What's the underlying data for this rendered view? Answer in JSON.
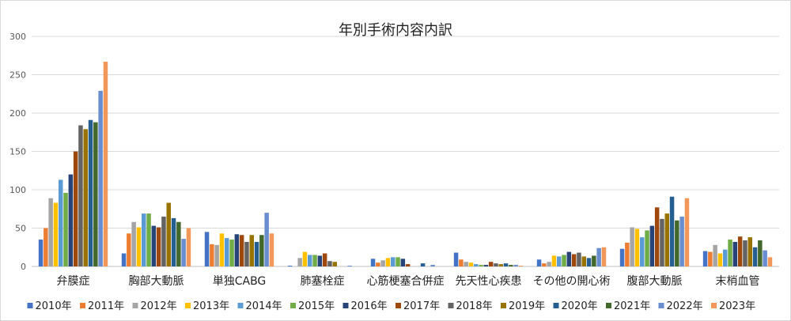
{
  "chart_data": {
    "type": "bar",
    "title": "年別手術内容内訳",
    "categories": [
      "弁膜症",
      "胸部大動脈",
      "単独CABG",
      "肺塞栓症",
      "心筋梗塞合併症",
      "先天性心疾患",
      "その他の開心術",
      "腹部大動脈",
      "末梢血管"
    ],
    "ylim": [
      0,
      300
    ],
    "yticks": [
      0,
      50,
      100,
      150,
      200,
      250,
      300
    ],
    "grid": true,
    "legend_position": "bottom",
    "series": [
      {
        "name": "2010年",
        "color": "#4472C4",
        "values": [
          35,
          17,
          45,
          1,
          10,
          18,
          9,
          23,
          20
        ]
      },
      {
        "name": "2011年",
        "color": "#ED7D31",
        "values": [
          50,
          43,
          29,
          0,
          5,
          9,
          4,
          31,
          19
        ]
      },
      {
        "name": "2012年",
        "color": "#A5A5A5",
        "values": [
          89,
          58,
          28,
          11,
          8,
          6,
          6,
          51,
          28
        ]
      },
      {
        "name": "2013年",
        "color": "#FFC000",
        "values": [
          83,
          51,
          43,
          19,
          11,
          5,
          14,
          49,
          17
        ]
      },
      {
        "name": "2014年",
        "color": "#5B9BD5",
        "values": [
          113,
          69,
          37,
          15,
          12,
          3,
          13,
          38,
          22
        ]
      },
      {
        "name": "2015年",
        "color": "#70AD47",
        "values": [
          96,
          69,
          35,
          15,
          12,
          2,
          15,
          47,
          35
        ]
      },
      {
        "name": "2016年",
        "color": "#264478",
        "values": [
          120,
          53,
          42,
          14,
          10,
          2,
          19,
          53,
          32
        ]
      },
      {
        "name": "2017年",
        "color": "#9E480E",
        "values": [
          150,
          51,
          41,
          17,
          3,
          6,
          16,
          77,
          39
        ]
      },
      {
        "name": "2018年",
        "color": "#636363",
        "values": [
          184,
          65,
          32,
          7,
          0,
          4,
          18,
          62,
          34
        ]
      },
      {
        "name": "2019年",
        "color": "#997300",
        "values": [
          179,
          83,
          41,
          6,
          0,
          3,
          13,
          69,
          38
        ]
      },
      {
        "name": "2020年",
        "color": "#255E91",
        "values": [
          191,
          63,
          32,
          0,
          4,
          4,
          11,
          91,
          25
        ]
      },
      {
        "name": "2021年",
        "color": "#43682B",
        "values": [
          188,
          58,
          41,
          0,
          0,
          2,
          14,
          60,
          34
        ]
      },
      {
        "name": "2022年",
        "color": "#698ED0",
        "values": [
          229,
          36,
          70,
          1,
          2,
          2,
          24,
          65,
          21
        ]
      },
      {
        "name": "2023年",
        "color": "#F1975A",
        "values": [
          267,
          50,
          43,
          0,
          0,
          1,
          25,
          89,
          12
        ]
      }
    ]
  }
}
